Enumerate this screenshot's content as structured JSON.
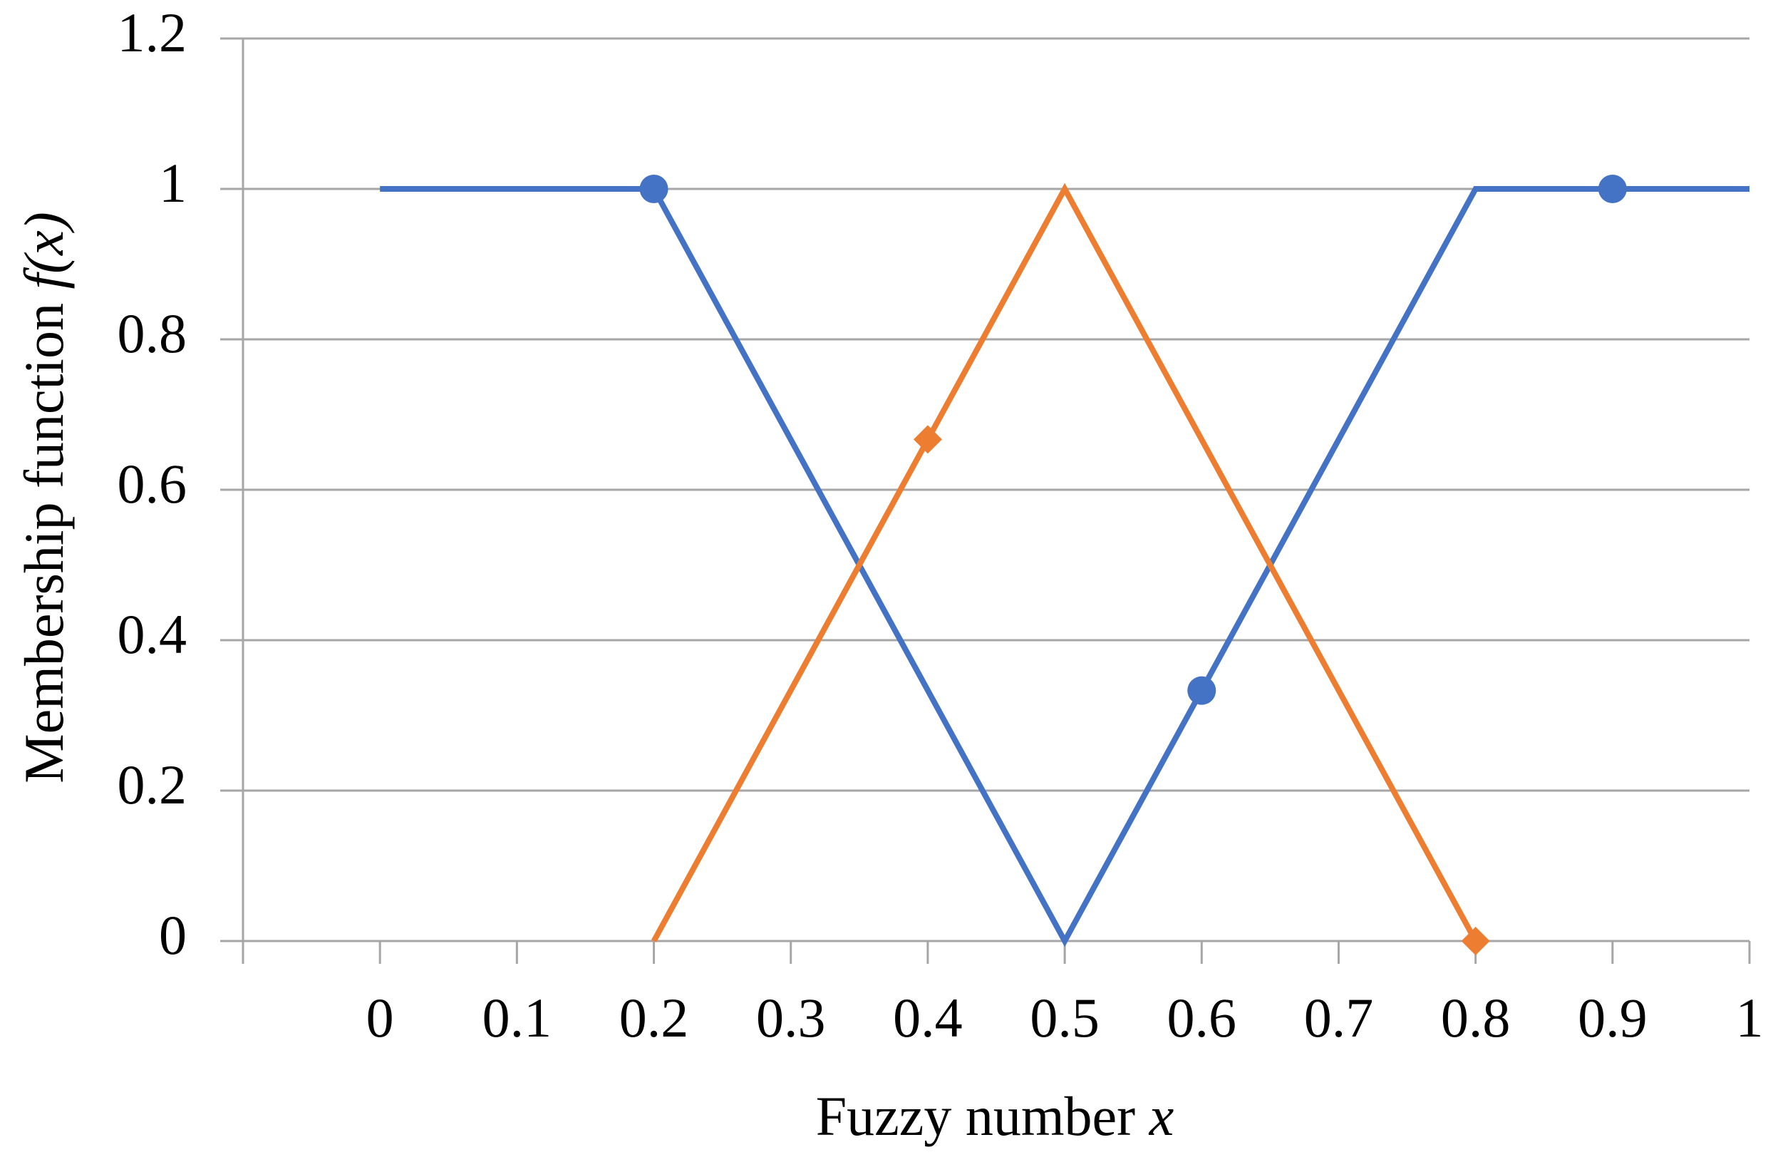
{
  "chart_data": {
    "type": "line",
    "xlabel": {
      "text": "Fuzzy number",
      "var": "x"
    },
    "ylabel": {
      "text": "Membership function",
      "var": "f(x)"
    },
    "xlim": [
      -0.1,
      1
    ],
    "xticks": [
      0,
      0.1,
      0.2,
      0.3,
      0.4,
      0.5,
      0.6,
      0.7,
      0.8,
      0.9,
      1
    ],
    "ylim": [
      0,
      1.2
    ],
    "yticks": [
      0,
      0.2,
      0.4,
      0.6,
      0.8,
      1,
      1.2
    ],
    "grid": true,
    "series": [
      {
        "color": "#4472c4",
        "marker": "circle",
        "x": [
          0,
          0.2,
          0.5,
          0.8,
          1
        ],
        "values": [
          1,
          1,
          0,
          1,
          1
        ],
        "marker_x": [
          0.2,
          0.6,
          0.9
        ],
        "marker_values": [
          1,
          0.333,
          1
        ]
      },
      {
        "color": "#ed7d31",
        "marker": "diamond",
        "x": [
          0.2,
          0.5,
          0.8
        ],
        "values": [
          0,
          1,
          0
        ],
        "marker_x": [
          0.4,
          0.8
        ],
        "marker_values": [
          0.667,
          0
        ]
      }
    ]
  }
}
